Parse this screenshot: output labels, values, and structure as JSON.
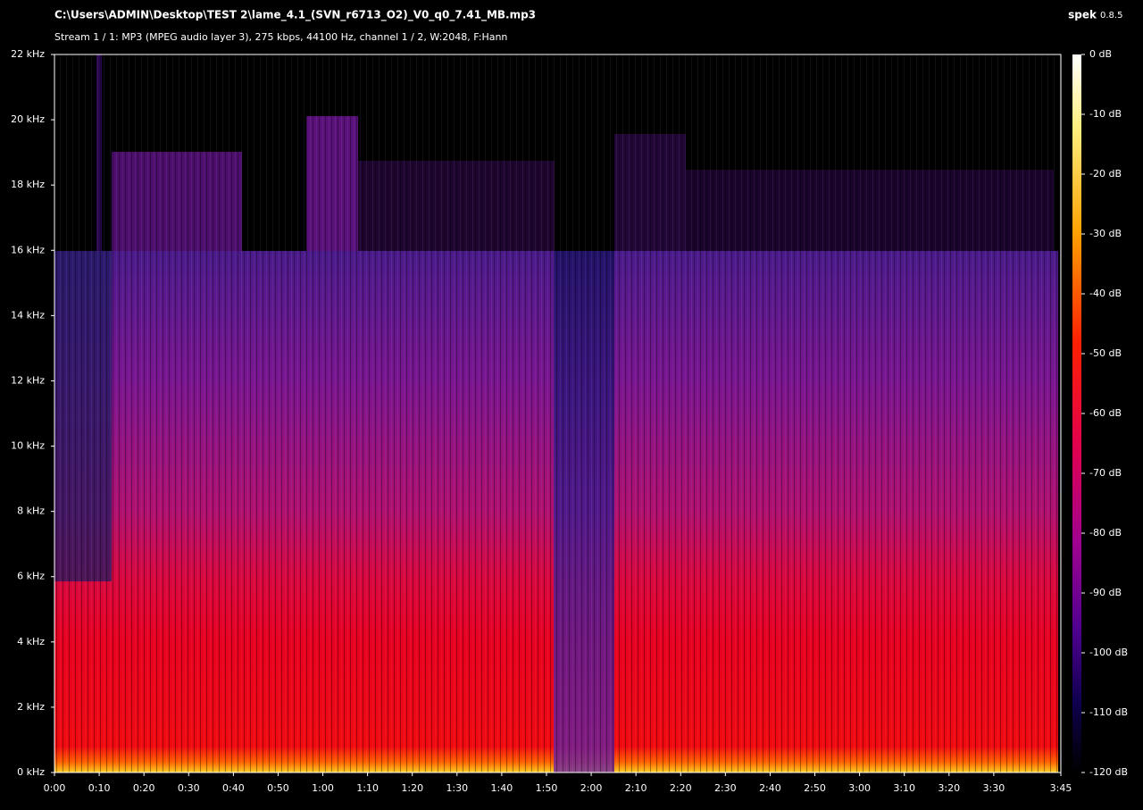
{
  "chart_data": {
    "type": "spectrogram",
    "title": "C:\\Users\\ADMIN\\Desktop\\TEST 2\\lame_4.1_(SVN_r6713_O2)_V0_q0_7.41_MB.mp3",
    "subtitle": "Stream 1 / 1: MP3 (MPEG audio layer 3), 275 kbps, 44100 Hz, channel 1 / 2, W:2048, F:Hann",
    "app_name": "spek",
    "app_version": "0.8.5",
    "xlim": [
      0,
      225
    ],
    "xticks": [
      {
        "value": 0,
        "label": "0:00"
      },
      {
        "value": 10,
        "label": "0:10"
      },
      {
        "value": 20,
        "label": "0:20"
      },
      {
        "value": 30,
        "label": "0:30"
      },
      {
        "value": 40,
        "label": "0:40"
      },
      {
        "value": 50,
        "label": "0:50"
      },
      {
        "value": 60,
        "label": "1:00"
      },
      {
        "value": 70,
        "label": "1:10"
      },
      {
        "value": 80,
        "label": "1:20"
      },
      {
        "value": 90,
        "label": "1:30"
      },
      {
        "value": 100,
        "label": "1:40"
      },
      {
        "value": 110,
        "label": "1:50"
      },
      {
        "value": 120,
        "label": "2:00"
      },
      {
        "value": 130,
        "label": "2:10"
      },
      {
        "value": 140,
        "label": "2:20"
      },
      {
        "value": 150,
        "label": "2:30"
      },
      {
        "value": 160,
        "label": "2:40"
      },
      {
        "value": 170,
        "label": "2:50"
      },
      {
        "value": 180,
        "label": "3:00"
      },
      {
        "value": 190,
        "label": "3:10"
      },
      {
        "value": 200,
        "label": "3:20"
      },
      {
        "value": 210,
        "label": "3:30"
      },
      {
        "value": 225,
        "label": "3:45"
      }
    ],
    "ylim": [
      0,
      22
    ],
    "yticks": [
      {
        "value": 0,
        "label": "0 kHz"
      },
      {
        "value": 2,
        "label": "2 kHz"
      },
      {
        "value": 4,
        "label": "4 kHz"
      },
      {
        "value": 6,
        "label": "6 kHz"
      },
      {
        "value": 8,
        "label": "8 kHz"
      },
      {
        "value": 10,
        "label": "10 kHz"
      },
      {
        "value": 12,
        "label": "12 kHz"
      },
      {
        "value": 14,
        "label": "14 kHz"
      },
      {
        "value": 16,
        "label": "16 kHz"
      },
      {
        "value": 18,
        "label": "18 kHz"
      },
      {
        "value": 20,
        "label": "20 kHz"
      },
      {
        "value": 22,
        "label": "22 kHz"
      }
    ],
    "zlim": [
      -120,
      0
    ],
    "zticks": [
      {
        "value": 0,
        "label": "0 dB"
      },
      {
        "value": -10,
        "label": "-10 dB"
      },
      {
        "value": -20,
        "label": "-20 dB"
      },
      {
        "value": -30,
        "label": "-30 dB"
      },
      {
        "value": -40,
        "label": "-40 dB"
      },
      {
        "value": -50,
        "label": "-50 dB"
      },
      {
        "value": -60,
        "label": "-60 dB"
      },
      {
        "value": -70,
        "label": "-70 dB"
      },
      {
        "value": -80,
        "label": "-80 dB"
      },
      {
        "value": -90,
        "label": "-90 dB"
      },
      {
        "value": -100,
        "label": "-100 dB"
      },
      {
        "value": -110,
        "label": "-110 dB"
      },
      {
        "value": -120,
        "label": "-120 dB"
      }
    ]
  }
}
